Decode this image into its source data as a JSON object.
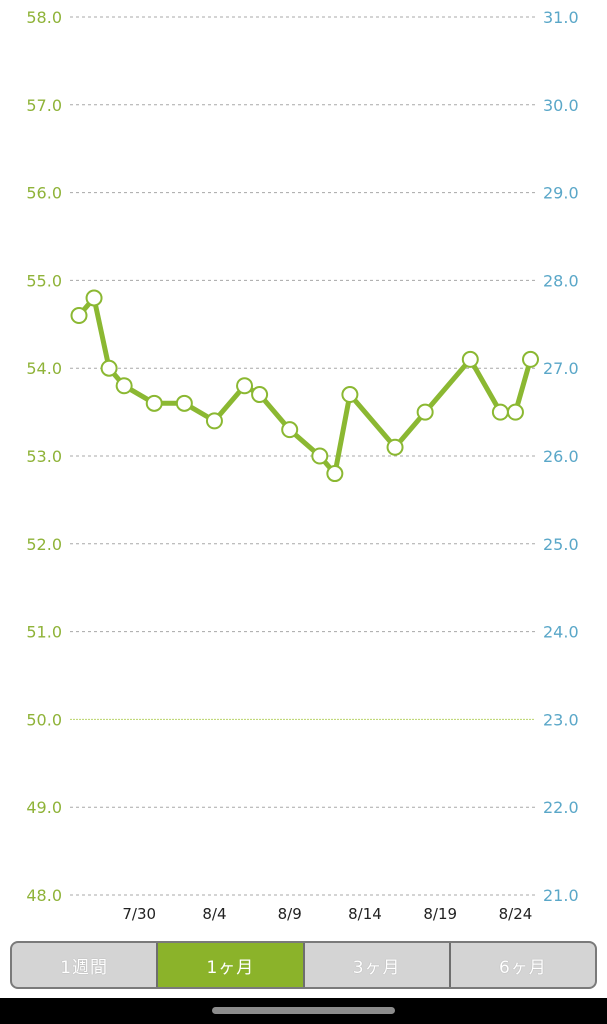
{
  "chart_data": {
    "type": "line",
    "title": "",
    "left_axis": {
      "min": 48.0,
      "max": 58.0,
      "ticks": [
        "58.0",
        "57.0",
        "56.0",
        "55.0",
        "54.0",
        "53.0",
        "52.0",
        "51.0",
        "50.0",
        "49.0",
        "48.0"
      ],
      "color": "#8fb339"
    },
    "right_axis": {
      "min": 21.0,
      "max": 31.0,
      "ticks": [
        "31.0",
        "30.0",
        "29.0",
        "28.0",
        "27.0",
        "26.0",
        "25.0",
        "24.0",
        "23.0",
        "22.0",
        "21.0"
      ],
      "color": "#5aa7c8"
    },
    "x_labels": [
      "7/30",
      "8/4",
      "8/9",
      "8/14",
      "8/19",
      "8/24"
    ],
    "x_label_days": [
      4,
      9,
      14,
      19,
      24,
      29
    ],
    "target_line": 50.0,
    "grid": true,
    "series": [
      {
        "color": "#8bb832",
        "points": [
          {
            "day": 0,
            "y": 54.6
          },
          {
            "day": 1,
            "y": 54.8
          },
          {
            "day": 2,
            "y": 54.0
          },
          {
            "day": 3,
            "y": 53.8
          },
          {
            "day": 5,
            "y": 53.6
          },
          {
            "day": 7,
            "y": 53.6
          },
          {
            "day": 9,
            "y": 53.4
          },
          {
            "day": 11,
            "y": 53.8
          },
          {
            "day": 12,
            "y": 53.7
          },
          {
            "day": 14,
            "y": 53.3
          },
          {
            "day": 16,
            "y": 53.0
          },
          {
            "day": 17,
            "y": 52.8
          },
          {
            "day": 18,
            "y": 53.7
          },
          {
            "day": 21,
            "y": 53.1
          },
          {
            "day": 23,
            "y": 53.5
          },
          {
            "day": 26,
            "y": 54.1
          },
          {
            "day": 28,
            "y": 53.5
          },
          {
            "day": 29,
            "y": 53.5
          },
          {
            "day": 30,
            "y": 54.1
          }
        ]
      }
    ]
  },
  "tabs": [
    {
      "label": "1週間",
      "active": false
    },
    {
      "label": "1ヶ月",
      "active": true
    },
    {
      "label": "3ヶ月",
      "active": false
    },
    {
      "label": "6ヶ月",
      "active": false
    }
  ]
}
